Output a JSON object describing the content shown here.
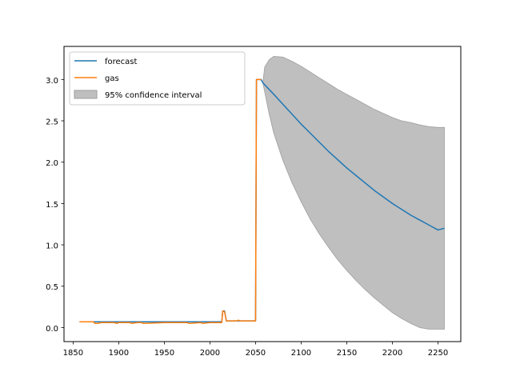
{
  "chart_data": {
    "type": "line",
    "title": "",
    "xlabel": "",
    "ylabel": "",
    "xlim": [
      1840,
      2275
    ],
    "ylim": [
      -0.17,
      3.4
    ],
    "x_ticks": [
      1850,
      1900,
      1950,
      2000,
      2050,
      2100,
      2150,
      2200,
      2250
    ],
    "y_ticks": [
      0.0,
      0.5,
      1.0,
      1.5,
      2.0,
      2.5,
      3.0
    ],
    "y_tick_labels": [
      "0.0",
      "0.5",
      "1.0",
      "1.5",
      "2.0",
      "2.5",
      "3.0"
    ],
    "grid": false,
    "legend_position": "upper-left",
    "series": [
      {
        "name": "forecast",
        "color": "#1f77b4",
        "x": [
          1857,
          1870,
          1900,
          1950,
          2000,
          2013,
          2014,
          2016,
          2018,
          2020,
          2050,
          2051,
          2056,
          2058,
          2070,
          2080,
          2090,
          2100,
          2110,
          2120,
          2130,
          2140,
          2150,
          2160,
          2170,
          2180,
          2190,
          2200,
          2210,
          2220,
          2230,
          2240,
          2250,
          2257
        ],
        "y": [
          0.07,
          0.07,
          0.07,
          0.07,
          0.07,
          0.07,
          0.2,
          0.2,
          0.08,
          0.08,
          0.08,
          3.0,
          3.0,
          2.96,
          2.82,
          2.7,
          2.58,
          2.46,
          2.35,
          2.24,
          2.13,
          2.03,
          1.93,
          1.84,
          1.75,
          1.66,
          1.58,
          1.5,
          1.43,
          1.36,
          1.3,
          1.24,
          1.18,
          1.2
        ]
      },
      {
        "name": "gas",
        "color": "#ff7f0e",
        "x": [
          1857,
          1872,
          1874,
          1878,
          1880,
          1895,
          1898,
          1900,
          1912,
          1914,
          1920,
          1925,
          1927,
          1950,
          1975,
          1977,
          1990,
          1992,
          2000,
          2013,
          2014,
          2016,
          2018,
          2020,
          2030,
          2031,
          2033,
          2050,
          2051,
          2056
        ],
        "y": [
          0.07,
          0.07,
          0.05,
          0.05,
          0.06,
          0.06,
          0.05,
          0.06,
          0.06,
          0.05,
          0.06,
          0.06,
          0.05,
          0.06,
          0.06,
          0.05,
          0.06,
          0.05,
          0.06,
          0.06,
          0.2,
          0.19,
          0.08,
          0.08,
          0.08,
          0.09,
          0.08,
          0.08,
          3.0,
          3.0
        ]
      }
    ],
    "confidence_interval": {
      "name": "95% confidence interval",
      "color": "#bfbfbf",
      "edge_color": "#9e9e9e",
      "x": [
        2058,
        2060,
        2065,
        2070,
        2080,
        2090,
        2100,
        2110,
        2120,
        2130,
        2140,
        2150,
        2160,
        2170,
        2180,
        2190,
        2200,
        2210,
        2220,
        2230,
        2240,
        2250,
        2257
      ],
      "upper": [
        2.96,
        3.15,
        3.24,
        3.28,
        3.27,
        3.22,
        3.16,
        3.09,
        3.02,
        2.95,
        2.88,
        2.82,
        2.76,
        2.7,
        2.64,
        2.59,
        2.54,
        2.5,
        2.48,
        2.45,
        2.43,
        2.42,
        2.42
      ],
      "lower": [
        2.96,
        2.85,
        2.58,
        2.35,
        2.02,
        1.75,
        1.52,
        1.31,
        1.13,
        0.97,
        0.82,
        0.69,
        0.57,
        0.46,
        0.36,
        0.27,
        0.18,
        0.11,
        0.05,
        0.0,
        -0.02,
        -0.02,
        -0.02
      ]
    },
    "legend": [
      "forecast",
      "gas",
      "95% confidence interval"
    ]
  }
}
